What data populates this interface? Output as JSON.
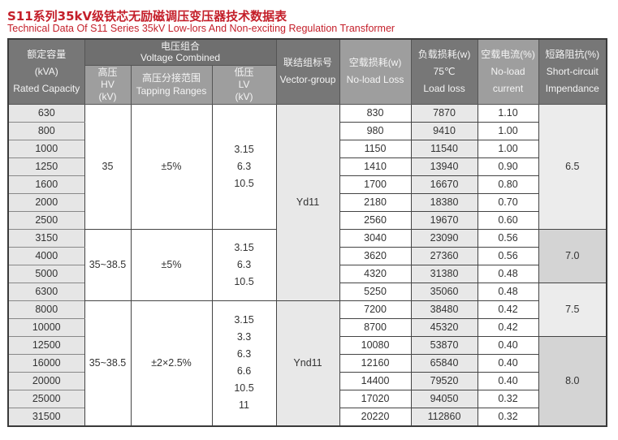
{
  "title": "S11系列35kV级铁芯无励磁调压变压器技术数据表",
  "subtitle": "Technical Data Of S11  Series 35kV Low-lors And Non-exciting Regulation Transformer",
  "colors": {
    "title": "#c41f2a",
    "header_dark": "#777777",
    "header_light": "#9e9e9e",
    "cell_gray": "#e6e6e6",
    "impedance_dark": "#d4d4d4"
  },
  "headers": {
    "capacity": [
      "额定容量",
      "(kVA)",
      "Rated Capacity"
    ],
    "voltage": [
      "电压组合",
      "Voltage Combined"
    ],
    "hv": [
      "高压",
      "HV",
      "(kV)"
    ],
    "tap": [
      "高压分接范围",
      "Tapping Ranges"
    ],
    "lv": [
      "低压",
      "LV",
      "(kV)"
    ],
    "vector": [
      "联结组标号",
      "Vector-group"
    ],
    "noload_loss": [
      "空载损耗(w)",
      "No-load Loss"
    ],
    "load_loss": [
      "负载损耗(w)",
      "75℃",
      "Load loss"
    ],
    "noload_current": [
      "空载电流(%)",
      "No-load",
      "current"
    ],
    "impedance": [
      "短路阻抗(%)",
      "Short-circuit",
      "Impendance"
    ]
  },
  "rows": [
    {
      "capacity": "630",
      "noload_loss": "830",
      "load_loss": "7870",
      "current": "1.10"
    },
    {
      "capacity": "800",
      "noload_loss": "980",
      "load_loss": "9410",
      "current": "1.00"
    },
    {
      "capacity": "1000",
      "noload_loss": "1150",
      "load_loss": "11540",
      "current": "1.00"
    },
    {
      "capacity": "1250",
      "noload_loss": "1410",
      "load_loss": "13940",
      "current": "0.90"
    },
    {
      "capacity": "1600",
      "noload_loss": "1700",
      "load_loss": "16670",
      "current": "0.80"
    },
    {
      "capacity": "2000",
      "noload_loss": "2180",
      "load_loss": "18380",
      "current": "0.70"
    },
    {
      "capacity": "2500",
      "noload_loss": "2560",
      "load_loss": "19670",
      "current": "0.60"
    },
    {
      "capacity": "3150",
      "noload_loss": "3040",
      "load_loss": "23090",
      "current": "0.56"
    },
    {
      "capacity": "4000",
      "noload_loss": "3620",
      "load_loss": "27360",
      "current": "0.56"
    },
    {
      "capacity": "5000",
      "noload_loss": "4320",
      "load_loss": "31380",
      "current": "0.48"
    },
    {
      "capacity": "6300",
      "noload_loss": "5250",
      "load_loss": "35060",
      "current": "0.48"
    },
    {
      "capacity": "8000",
      "noload_loss": "7200",
      "load_loss": "38480",
      "current": "0.42"
    },
    {
      "capacity": "10000",
      "noload_loss": "8700",
      "load_loss": "45320",
      "current": "0.42"
    },
    {
      "capacity": "12500",
      "noload_loss": "10080",
      "load_loss": "53870",
      "current": "0.40"
    },
    {
      "capacity": "16000",
      "noload_loss": "12160",
      "load_loss": "65840",
      "current": "0.40"
    },
    {
      "capacity": "20000",
      "noload_loss": "14400",
      "load_loss": "79520",
      "current": "0.40"
    },
    {
      "capacity": "25000",
      "noload_loss": "17020",
      "load_loss": "94050",
      "current": "0.32"
    },
    {
      "capacity": "31500",
      "noload_loss": "20220",
      "load_loss": "112860",
      "current": "0.32"
    }
  ],
  "voltage_groups": [
    {
      "start": 0,
      "span": 7,
      "hv": "35",
      "tap": "±5%",
      "lv": [
        "3.15",
        "6.3",
        "10.5"
      ]
    },
    {
      "start": 7,
      "span": 4,
      "hv": "35~38.5",
      "tap": "±5%",
      "lv": [
        "3.15",
        "6.3",
        "10.5"
      ]
    },
    {
      "start": 11,
      "span": 7,
      "hv": "35~38.5",
      "tap": "±2×2.5%",
      "lv": [
        "3.15",
        "3.3",
        "6.3",
        "6.6",
        "10.5",
        "11"
      ]
    }
  ],
  "vector_groups": [
    {
      "start": 0,
      "span": 11,
      "value": "Yd11"
    },
    {
      "start": 11,
      "span": 7,
      "value": "Ynd11"
    }
  ],
  "impedance_groups": [
    {
      "start": 0,
      "span": 7,
      "value": "6.5",
      "shade": "light"
    },
    {
      "start": 7,
      "span": 3,
      "value": "7.0",
      "shade": "dark"
    },
    {
      "start": 10,
      "span": 3,
      "value": "7.5",
      "shade": "light"
    },
    {
      "start": 13,
      "span": 5,
      "value": "8.0",
      "shade": "dark"
    }
  ]
}
